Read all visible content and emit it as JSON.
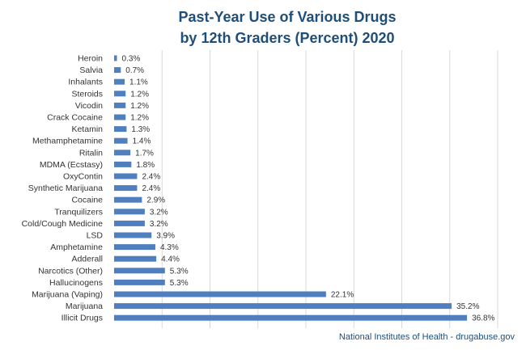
{
  "chart_data": {
    "type": "bar",
    "orientation": "horizontal",
    "title_line1": "Past-Year Use of Various Drugs",
    "title_line2": "by 12th Graders (Percent) 2020",
    "source": "National Institutes of Health - drugabuse.gov",
    "xlim": [
      0,
      40
    ],
    "grid_step": 5,
    "colors": {
      "bar": "#4f7fbf",
      "title": "#1f4e79",
      "grid": "#d9d9d9"
    },
    "categories": [
      "Heroin",
      "Salvia",
      "Inhalants",
      "Steroids",
      "Vicodin",
      "Crack Cocaine",
      "Ketamin",
      "Methamphetamine",
      "Ritalin",
      "MDMA (Ecstasy)",
      "OxyContin",
      "Synthetic Marijuana",
      "Cocaine",
      "Tranquilizers",
      "Cold/Cough Medicine",
      "LSD",
      "Amphetamine",
      "Adderall",
      "Narcotics (Other)",
      "Hallucinogens",
      "Marijuana (Vaping)",
      "Marijuana",
      "Illicit Drugs"
    ],
    "values": [
      0.3,
      0.7,
      1.1,
      1.2,
      1.2,
      1.2,
      1.3,
      1.4,
      1.7,
      1.8,
      2.4,
      2.4,
      2.9,
      3.2,
      3.2,
      3.9,
      4.3,
      4.4,
      5.3,
      5.3,
      22.1,
      35.2,
      36.8
    ],
    "value_labels": [
      "0.3%",
      "0.7%",
      "1.1%",
      "1.2%",
      "1.2%",
      "1.2%",
      "1.3%",
      "1.4%",
      "1.7%",
      "1.8%",
      "2.4%",
      "2.4%",
      "2.9%",
      "3.2%",
      "3.2%",
      "3.9%",
      "4.3%",
      "4.4%",
      "5.3%",
      "5.3%",
      "22.1%",
      "35.2%",
      "36.8%"
    ]
  }
}
